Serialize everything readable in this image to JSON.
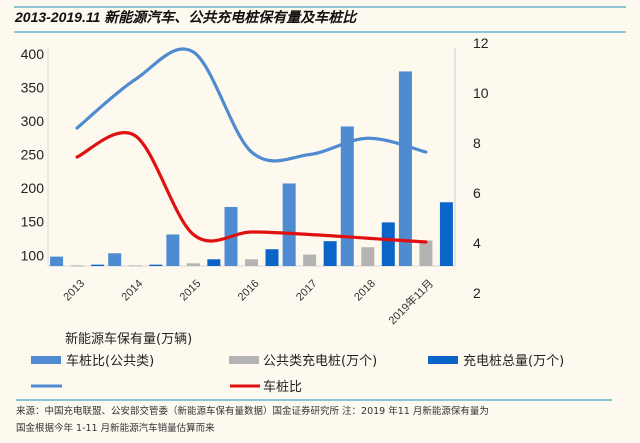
{
  "header": {
    "title": "2013-2019.11  新能源汽车、公共充电桩保有量及车桩比"
  },
  "colors": {
    "bg": "#fdf9ef",
    "rule": "#4aa8c8",
    "bar1": "#4f8bd0",
    "bar2": "#b4b4b4",
    "bar3": "#0b64c8",
    "line1": "#4f8bd0",
    "line2": "#e01010"
  },
  "chart_data": {
    "type": "bar",
    "title": "2013-2019.11 新能源汽车、公共充电桩保有量及车桩比",
    "categories": [
      "2013",
      "2014",
      "2015",
      "2016",
      "2017",
      "2018",
      "2019年11月"
    ],
    "left_axis": {
      "ylim": [
        84,
        400
      ],
      "ticks": [
        "100",
        "150",
        "200",
        "250",
        "300",
        "350",
        "400"
      ]
    },
    "right_axis": {
      "ylim": [
        2,
        12
      ],
      "ticks": [
        "2",
        "4",
        "6",
        "8",
        "10",
        "12"
      ]
    },
    "bars": [
      {
        "name": "车桩比(公共类)",
        "color": "#4f8bd0",
        "values": [
          98,
          103,
          131,
          172,
          207,
          292,
          374
        ]
      },
      {
        "name": "公共类充电桩(万个)",
        "color": "#b4b4b4",
        "values": [
          85,
          85,
          88,
          94,
          101,
          112,
          122
        ]
      },
      {
        "name": "充电桩总量(万个)",
        "color": "#0b64c8",
        "values": [
          86,
          86,
          94,
          109,
          121,
          149,
          179
        ]
      }
    ],
    "lines": [
      {
        "name": "",
        "color": "#4f8bd0",
        "axis": "right",
        "values": [
          8.56,
          10.5,
          11.6,
          7.6,
          7.5,
          8.15,
          7.6
        ]
      },
      {
        "name": "车桩比",
        "color": "#e01010",
        "axis": "right",
        "values": [
          7.4,
          8.25,
          4.3,
          4.4,
          4.3,
          4.15,
          4.0
        ]
      }
    ],
    "legend_heading": "新能源车保有量(万辆)",
    "legend": [
      "车桩比(公共类)",
      "公共类充电桩(万个)",
      "充电桩总量(万个)",
      "",
      "车桩比"
    ],
    "grid": false,
    "legend_position": "bottom"
  },
  "footer": {
    "line1": "来源：中国充电联盟、公安部交管委（新能源车保有量数据）国金证券研究所  注：2019 年11 月新能源保有量为",
    "line2": "国金根据今年 1-11 月新能源汽车销量估算而来"
  }
}
